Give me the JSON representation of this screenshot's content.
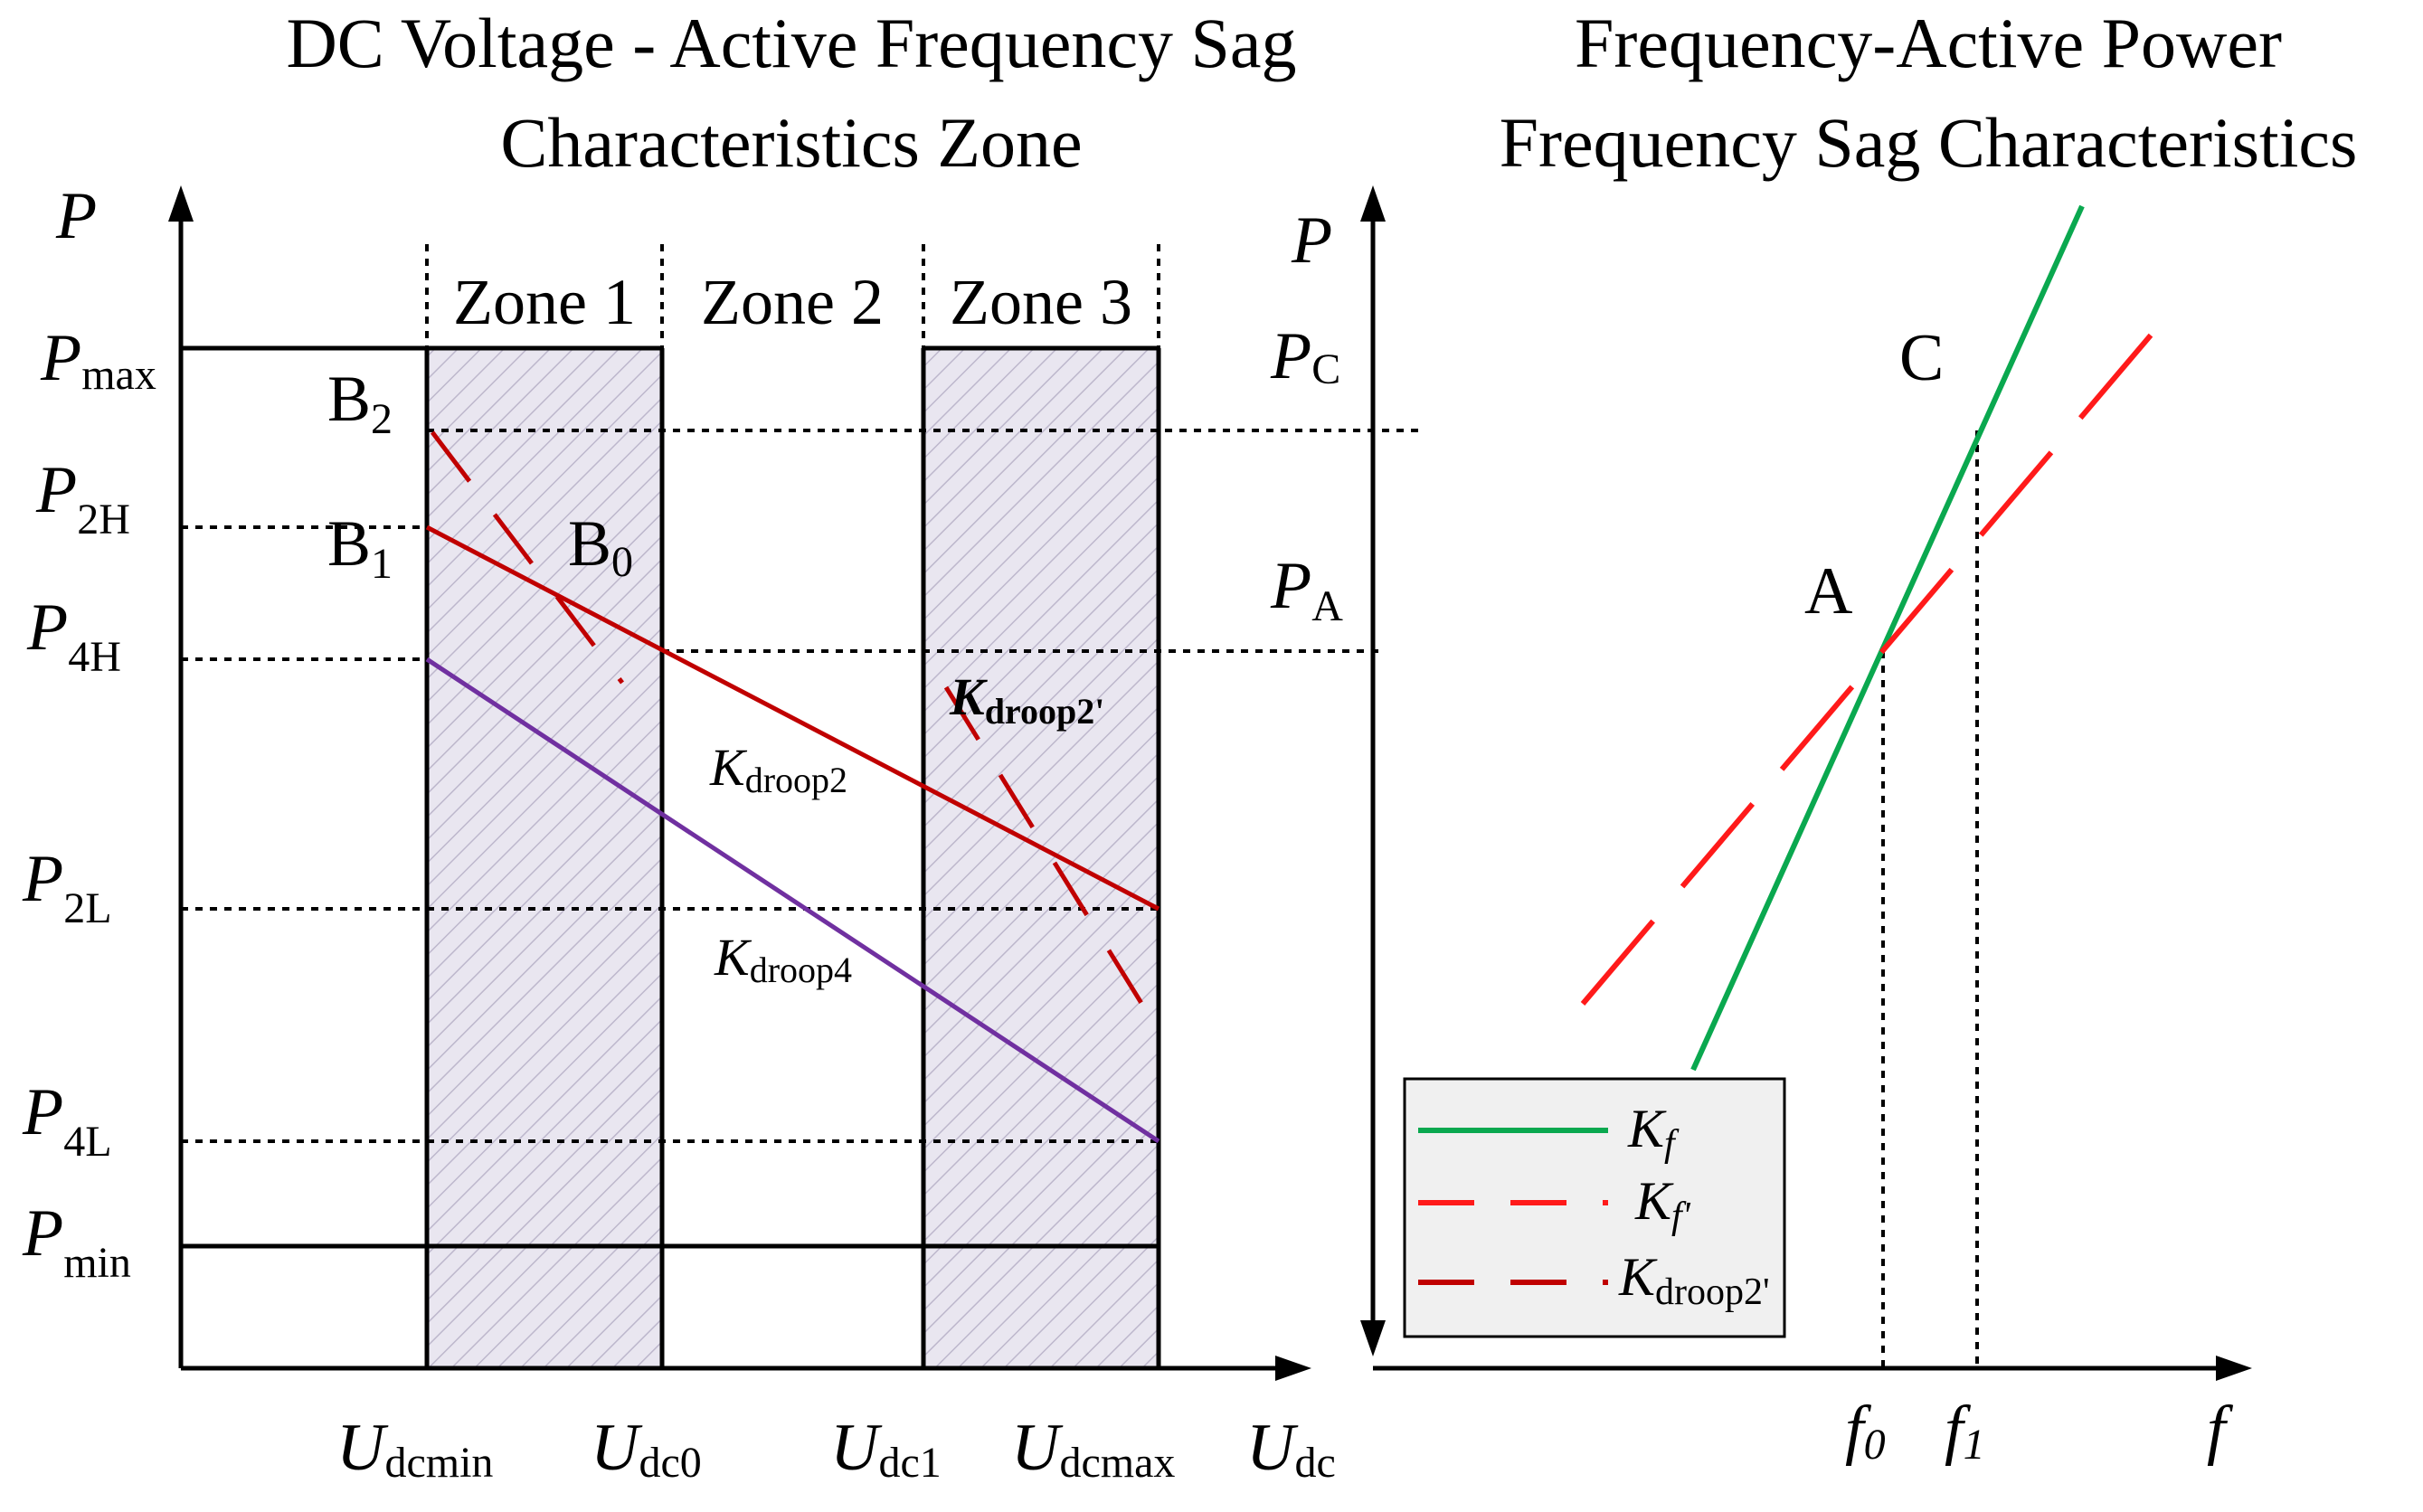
{
  "left_panel": {
    "title_line1": "DC Voltage - Active Frequency Sag",
    "title_line2": "Characteristics Zone",
    "axis_y": "P",
    "axis_x": {
      "main": "U",
      "sub": "dc"
    },
    "zones": [
      "Zone 1",
      "Zone 2",
      "Zone 3"
    ],
    "y_labels": {
      "pmax": {
        "main": "P",
        "sub": "max"
      },
      "p2h": {
        "main": "P",
        "sub": "2H"
      },
      "p4h": {
        "main": "P",
        "sub": "4H"
      },
      "p2l": {
        "main": "P",
        "sub": "2L"
      },
      "p4l": {
        "main": "P",
        "sub": "4L"
      },
      "pmin": {
        "main": "P",
        "sub": "min"
      }
    },
    "x_labels": {
      "udcmin": {
        "main": "U",
        "sub": "dcmin"
      },
      "udc0": {
        "main": "U",
        "sub": "dc0"
      },
      "udc1": {
        "main": "U",
        "sub": "dc1"
      },
      "udcmax": {
        "main": "U",
        "sub": "dcmax"
      }
    },
    "points": {
      "b2": {
        "main": "B",
        "sub": "2"
      },
      "b1": {
        "main": "B",
        "sub": "1"
      },
      "b0": {
        "main": "B",
        "sub": "0"
      }
    },
    "line_labels": {
      "kdroop2": {
        "main": "K",
        "sub": "droop2"
      },
      "kdroop4": {
        "main": "K",
        "sub": "droop4"
      },
      "kdroop2p": {
        "main": "K",
        "sub": "droop2'"
      }
    }
  },
  "right_panel": {
    "title_line1": "Frequency-Active Power",
    "title_line2": "Frequency Sag Characteristics",
    "axis_y": "P",
    "axis_x": "f",
    "y_labels": {
      "pc": {
        "main": "P",
        "sub": "C"
      },
      "pa": {
        "main": "P",
        "sub": "A"
      }
    },
    "points": {
      "c": "C",
      "a": "A"
    },
    "x_labels": {
      "f0": {
        "main": "f",
        "sub": "0"
      },
      "f1": {
        "main": "f",
        "sub": "1"
      }
    },
    "legend": [
      {
        "main": "K",
        "sub": "f",
        "style": "solid-green"
      },
      {
        "main": "K",
        "sub": "f'",
        "style": "dashed-red"
      },
      {
        "main": "K",
        "sub": "droop2'",
        "style": "dashed-darkred"
      }
    ]
  },
  "colors": {
    "green": "#0aa84f",
    "red": "#ff1a1a",
    "dark_red": "#c00000",
    "purple": "#7030a0",
    "zone_fill": "#e9e6f0",
    "hatch": "#bdb7cc",
    "legend_bg": "#f0f0f0"
  }
}
